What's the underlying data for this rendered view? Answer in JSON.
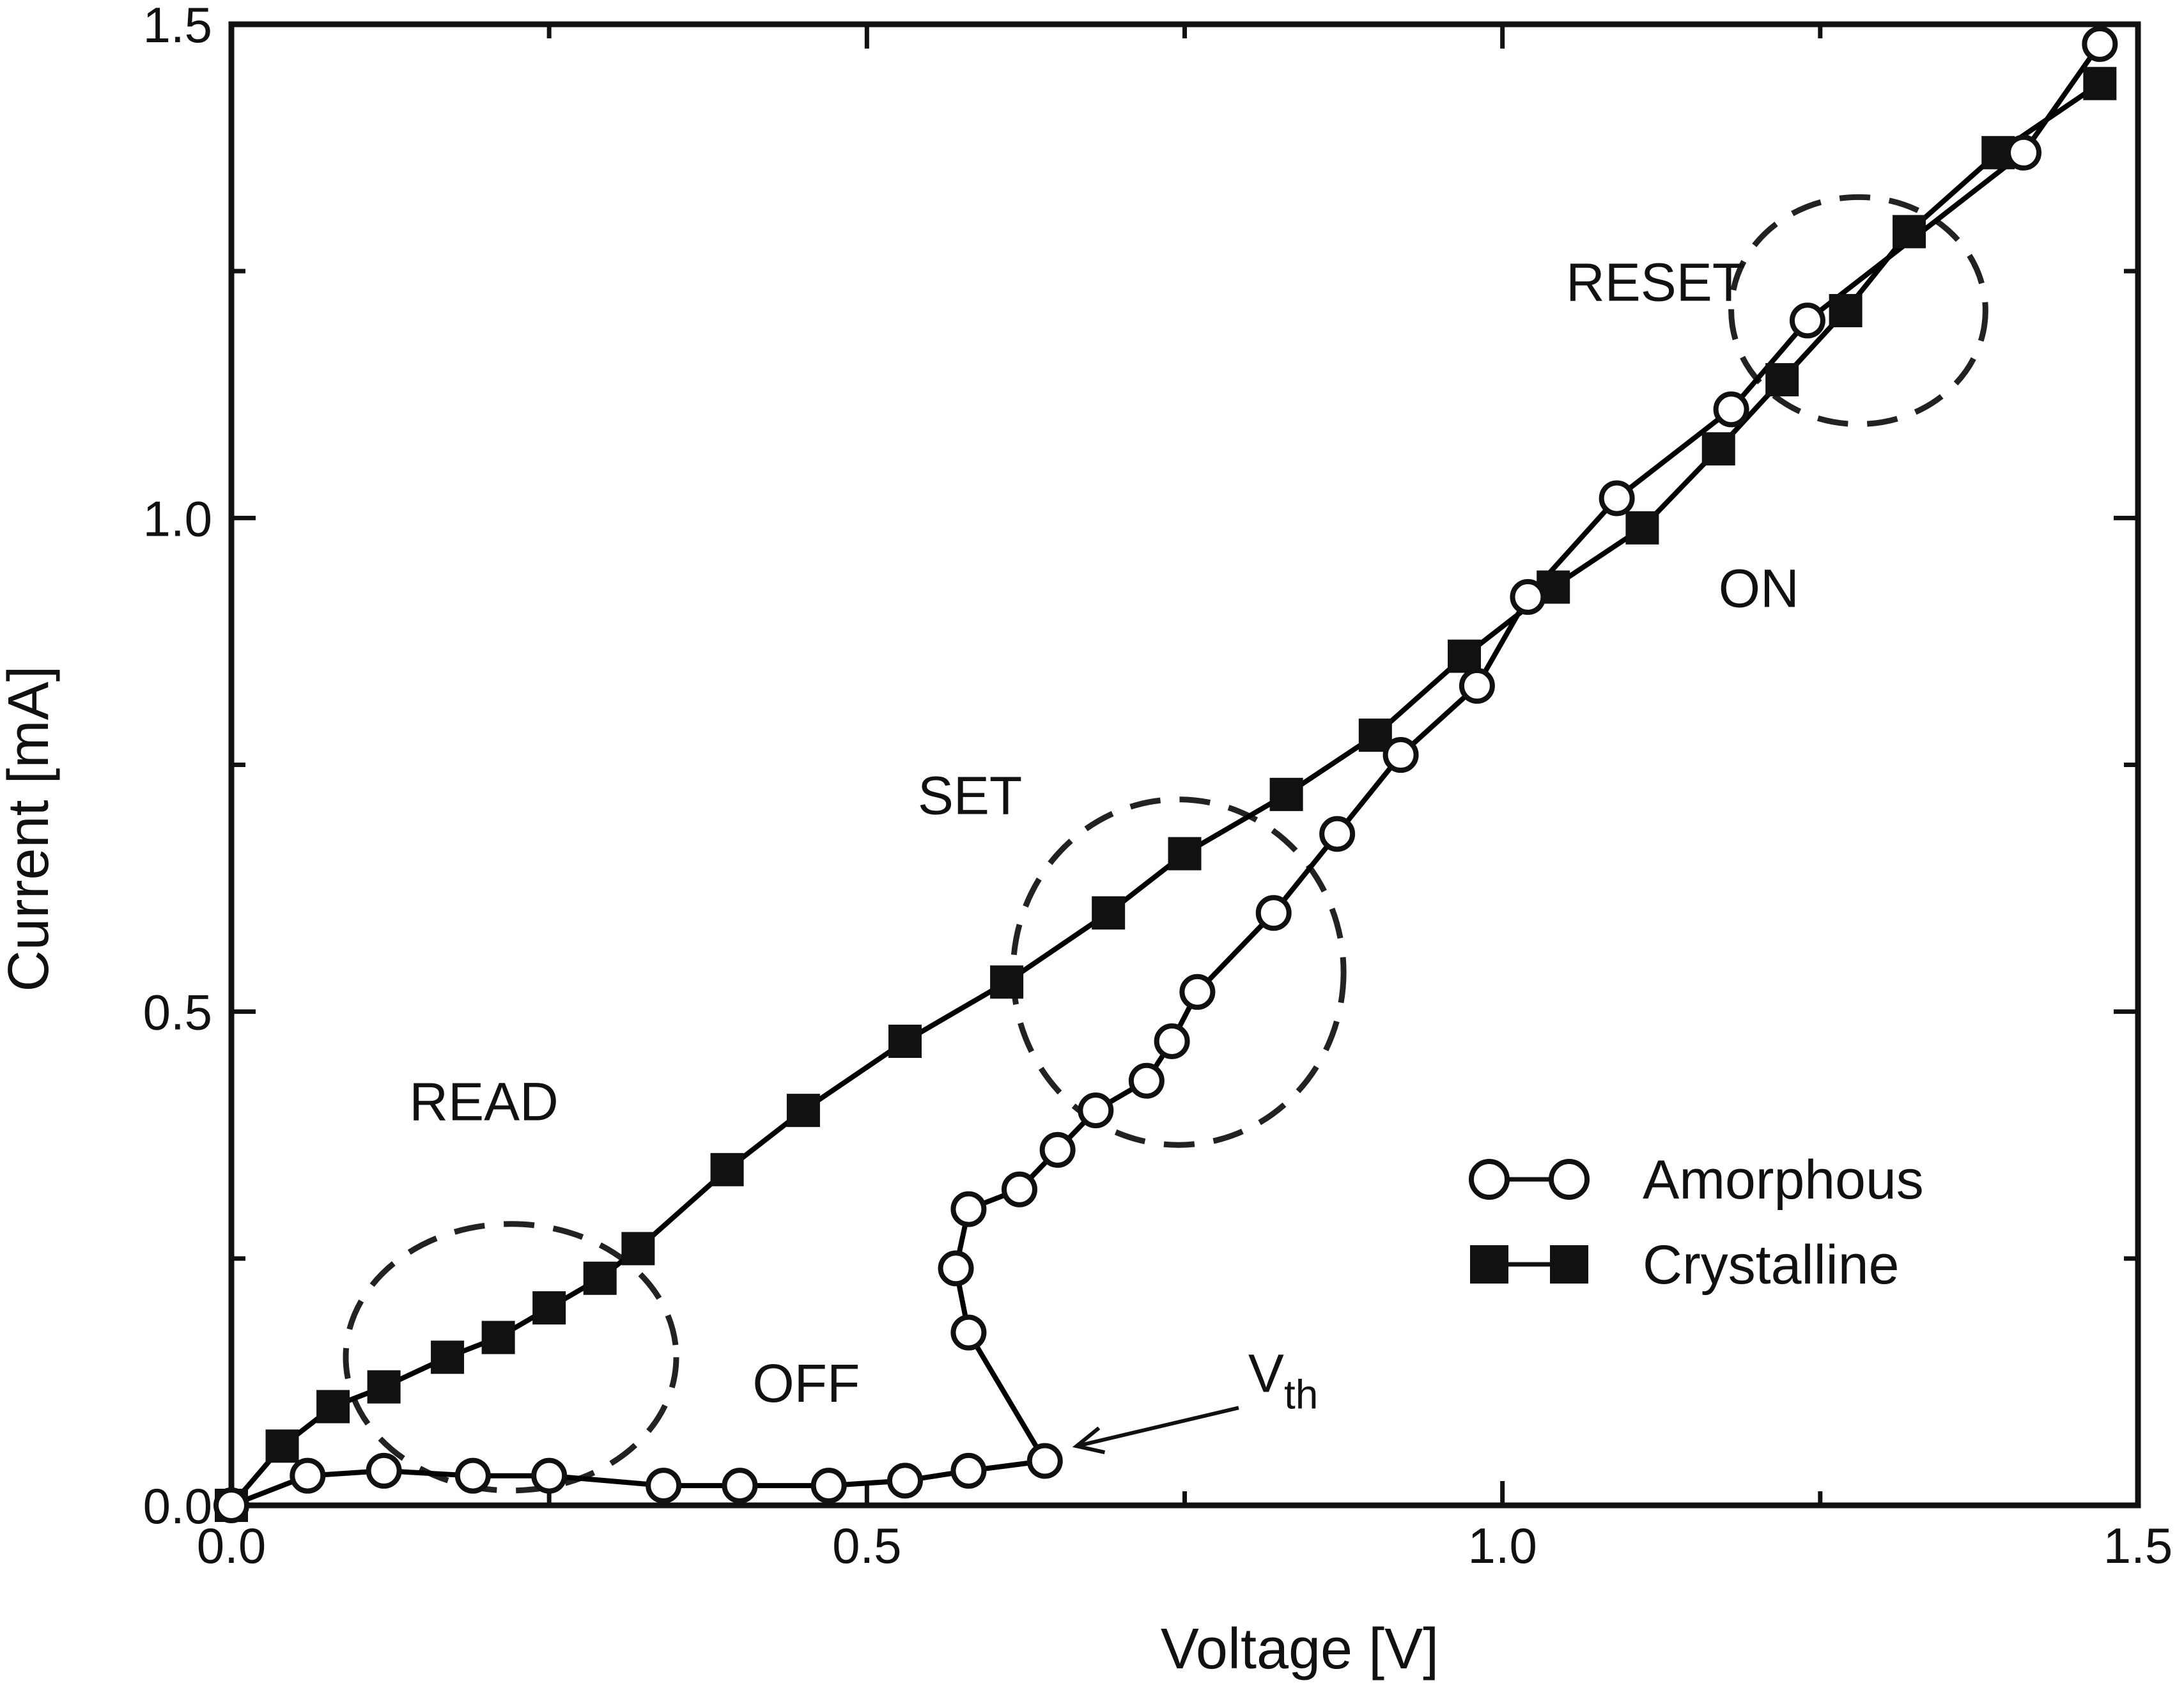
{
  "chart_data": {
    "type": "scatter",
    "title": "",
    "xlabel": "Voltage [V]",
    "ylabel": "Current [mA]",
    "xlim": [
      0,
      1.5
    ],
    "ylim": [
      0,
      1.5
    ],
    "x_ticks": [
      "0.0",
      "0.5",
      "1.0",
      "1.5"
    ],
    "y_ticks": [
      "0.0",
      "0.5",
      "1.0",
      "1.5"
    ],
    "grid": false,
    "legend_position": "lower-right",
    "series": [
      {
        "name": "Amorphous",
        "marker": "open-circle",
        "line": "solid",
        "color": "#000000",
        "x": [
          0.0,
          0.06,
          0.12,
          0.19,
          0.25,
          0.34,
          0.4,
          0.47,
          0.53,
          0.58,
          0.64,
          0.58,
          0.57,
          0.58,
          0.62,
          0.65,
          0.68,
          0.72,
          0.74,
          0.76,
          0.82,
          0.87,
          0.92,
          0.98,
          1.02,
          1.09,
          1.18,
          1.24,
          1.41,
          1.47
        ],
        "y": [
          0.0,
          0.03,
          0.035,
          0.03,
          0.03,
          0.02,
          0.02,
          0.02,
          0.025,
          0.035,
          0.045,
          0.175,
          0.24,
          0.3,
          0.32,
          0.36,
          0.4,
          0.43,
          0.47,
          0.52,
          0.6,
          0.68,
          0.76,
          0.83,
          0.92,
          1.02,
          1.11,
          1.2,
          1.37,
          1.48
        ]
      },
      {
        "name": "Crystalline",
        "marker": "filled-square",
        "line": "solid",
        "color": "#000000",
        "x": [
          0.0,
          0.04,
          0.08,
          0.12,
          0.17,
          0.21,
          0.25,
          0.29,
          0.32,
          0.39,
          0.45,
          0.53,
          0.61,
          0.69,
          0.75,
          0.83,
          0.9,
          0.97,
          1.04,
          1.11,
          1.17,
          1.22,
          1.27,
          1.32,
          1.39,
          1.47
        ],
        "y": [
          0.0,
          0.06,
          0.1,
          0.12,
          0.15,
          0.17,
          0.2,
          0.23,
          0.26,
          0.34,
          0.4,
          0.47,
          0.53,
          0.6,
          0.66,
          0.72,
          0.78,
          0.86,
          0.93,
          0.99,
          1.07,
          1.14,
          1.21,
          1.29,
          1.37,
          1.44
        ]
      }
    ],
    "annotations": [
      {
        "id": "read",
        "text": "READ",
        "x": 0.14,
        "y": 0.39
      },
      {
        "id": "off",
        "text": "OFF",
        "x": 0.41,
        "y": 0.105
      },
      {
        "id": "set",
        "text": "SET",
        "x": 0.54,
        "y": 0.7
      },
      {
        "id": "reset",
        "text": "RESET",
        "x": 1.05,
        "y": 1.22
      },
      {
        "id": "on",
        "text": "ON",
        "x": 1.17,
        "y": 0.91
      }
    ],
    "vth_label": {
      "main": "V",
      "sub": "th",
      "x": 0.8,
      "y": 0.115,
      "arrow_to": [
        0.665,
        0.06
      ]
    },
    "regions": [
      {
        "id": "read-region",
        "cx": 0.22,
        "cy": 0.15,
        "rx": 0.13,
        "ry": 0.135
      },
      {
        "id": "set-region",
        "cx": 0.745,
        "cy": 0.54,
        "rx": 0.13,
        "ry": 0.175
      },
      {
        "id": "reset-region",
        "cx": 1.28,
        "cy": 1.21,
        "rx": 0.1,
        "ry": 0.115
      }
    ]
  }
}
